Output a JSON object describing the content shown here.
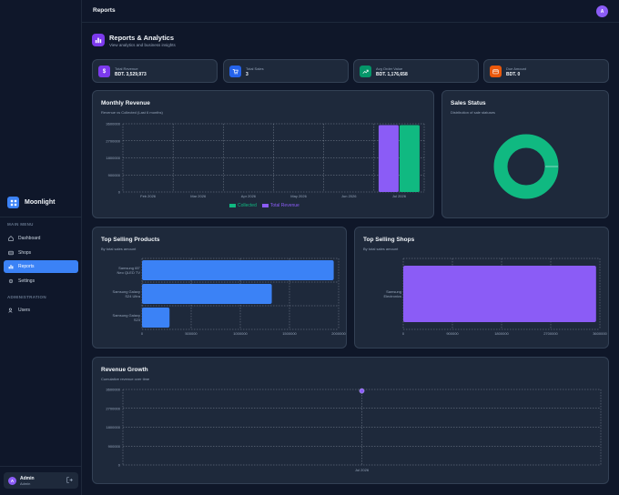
{
  "sidebar": {
    "brand": "Moonlight",
    "main_menu_title": "MAIN MENU",
    "main_items": [
      {
        "label": "Dashboard",
        "icon": "home-icon"
      },
      {
        "label": "Shops",
        "icon": "store-icon"
      },
      {
        "label": "Reports",
        "icon": "bar-chart-icon",
        "active": true
      },
      {
        "label": "Settings",
        "icon": "gear-icon"
      }
    ],
    "admin_title": "ADMINISTRATION",
    "admin_items": [
      {
        "label": "Users",
        "icon": "users-icon"
      }
    ],
    "user": {
      "initial": "A",
      "name": "Admin",
      "role": "Admin"
    }
  },
  "topbar": {
    "title": "Reports",
    "avatar_initial": "A"
  },
  "page_header": {
    "title": "Reports & Analytics",
    "subtitle": "View analytics and business insights"
  },
  "stats": [
    {
      "label": "Total Revenue",
      "value": "BDT. 3,529,973",
      "color": "#7c3aed",
      "icon": "dollar-icon"
    },
    {
      "label": "Total Sales",
      "value": "3",
      "color": "#2563eb",
      "icon": "cart-icon"
    },
    {
      "label": "Avg Order Value",
      "value": "BDT. 1,176,658",
      "color": "#059669",
      "icon": "trend-up-icon"
    },
    {
      "label": "Due Amount",
      "value": "BDT. 0",
      "color": "#ea580c",
      "icon": "wallet-icon"
    }
  ],
  "monthly_revenue": {
    "title": "Monthly Revenue",
    "subtitle": "Revenue vs Collected (Last 6 months)"
  },
  "sales_status": {
    "title": "Sales Status",
    "subtitle": "Distribution of sale statuses"
  },
  "top_products": {
    "title": "Top Selling Products",
    "subtitle": "By total sales amount"
  },
  "top_shops": {
    "title": "Top Selling Shops",
    "subtitle": "By total sales amount"
  },
  "revenue_growth": {
    "title": "Revenue Growth",
    "subtitle": "Cumulative revenue over time"
  },
  "chart_data": [
    {
      "id": "monthly_revenue",
      "type": "bar",
      "categories": [
        "Feb 2026",
        "Mar 2026",
        "Apr 2026",
        "May 2026",
        "Jun 2026",
        "Jul 2026"
      ],
      "series": [
        {
          "name": "Collected",
          "color": "#10b981",
          "values": [
            0,
            0,
            0,
            0,
            0,
            3529973
          ]
        },
        {
          "name": "Total Revenue",
          "color": "#8b5cf6",
          "values": [
            0,
            0,
            0,
            0,
            0,
            3529973
          ]
        }
      ],
      "ylim": [
        0,
        3600000
      ],
      "yticks": [
        "0",
        "900000",
        "1800000",
        "2700000",
        "3600000"
      ],
      "legend": "bottom",
      "grid": true
    },
    {
      "id": "sales_status",
      "type": "pie",
      "donut": true,
      "slices": [
        {
          "value": 3,
          "color": "#10b981"
        }
      ]
    },
    {
      "id": "top_products",
      "type": "bar",
      "orientation": "horizontal",
      "categories": [
        [
          "Samsung 65\"",
          "Neo QLED TV"
        ],
        [
          "Samsung Galaxy",
          "S24 Ultra"
        ],
        [
          "Samsung Galaxy",
          "S23"
        ]
      ],
      "values": [
        1950000,
        1320000,
        280000
      ],
      "color": "#3b82f6",
      "xlim": [
        0,
        2000000
      ],
      "xticks": [
        "0",
        "500000",
        "1000000",
        "1500000",
        "2000000"
      ],
      "grid": true
    },
    {
      "id": "top_shops",
      "type": "bar",
      "orientation": "horizontal",
      "categories": [
        [
          "Samsung",
          "Electronics"
        ]
      ],
      "values": [
        3529973
      ],
      "color": "#8b5cf6",
      "xlim": [
        0,
        3600000
      ],
      "xticks": [
        "0",
        "900000",
        "1800000",
        "2700000",
        "3600000"
      ],
      "grid": true
    },
    {
      "id": "revenue_growth",
      "type": "line",
      "x": [
        "Jul 2026"
      ],
      "values": [
        3529973
      ],
      "color": "#8b5cf6",
      "ylim": [
        0,
        3600000
      ],
      "yticks": [
        "0",
        "900000",
        "1800000",
        "2700000",
        "3600000"
      ],
      "grid": true
    }
  ]
}
